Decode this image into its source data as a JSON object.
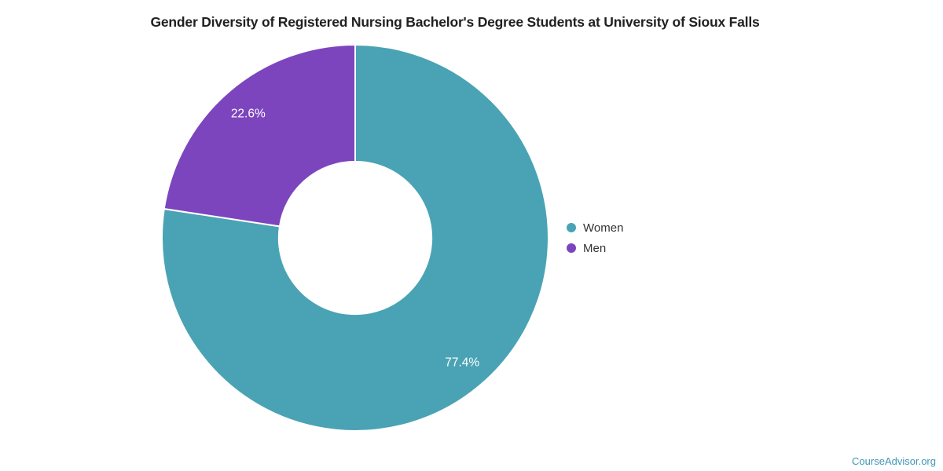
{
  "title": "Gender Diversity of Registered Nursing Bachelor's Degree Students at University of Sioux Falls",
  "footer": {
    "credit": "CourseAdvisor.org",
    "credit_color": "#4296B5"
  },
  "chart_data": {
    "type": "pie",
    "subtype": "donut",
    "title": "Gender Diversity of Registered Nursing Bachelor's Degree Students at University of Sioux Falls",
    "labels": [
      "Women",
      "Men"
    ],
    "values": [
      77.4,
      22.6
    ],
    "value_labels": [
      "77.4%",
      "22.6%"
    ],
    "colors": [
      "#4AA3B4",
      "#7C45BE"
    ],
    "slice_label_color": "#ffffff",
    "separator_color": "#ffffff",
    "start_angle_deg": -90,
    "direction": "clockwise",
    "inner_radius_ratio": 0.395,
    "legend_position": "right",
    "legend_marker": "circle"
  }
}
